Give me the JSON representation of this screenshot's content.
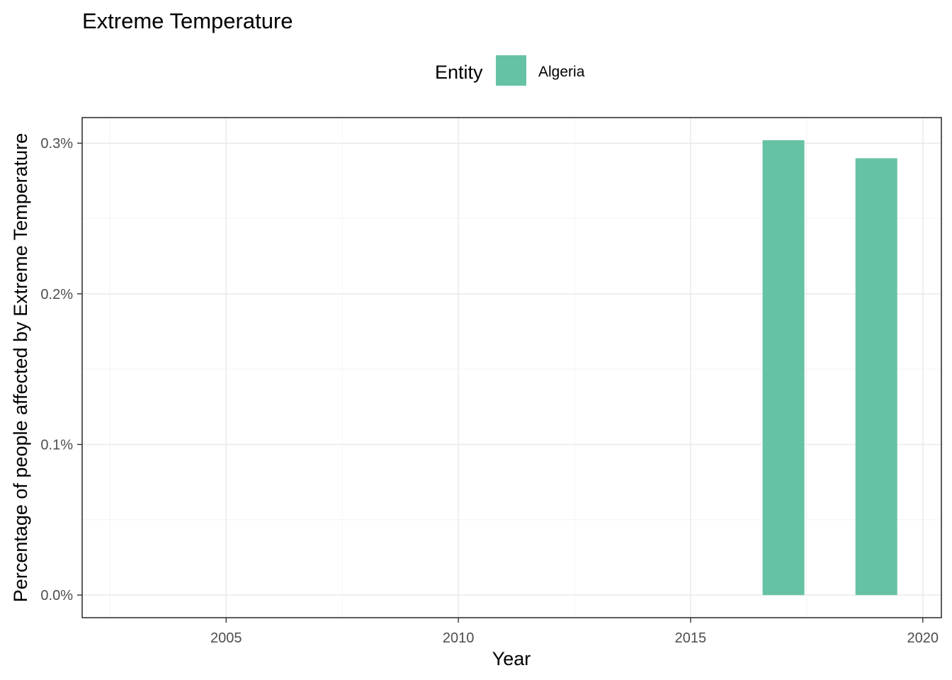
{
  "chart_data": {
    "type": "bar",
    "title": "Extreme Temperature",
    "xlabel": "Year",
    "ylabel": "Percentage of people affected by Extreme Temperature",
    "legend": {
      "title": "Entity",
      "position": "top"
    },
    "series": [
      {
        "name": "Algeria",
        "color": "#66c2a5",
        "x": [
          2017,
          2019
        ],
        "values": [
          0.302,
          0.29
        ]
      }
    ],
    "xlim": [
      2001.9,
      2020.4
    ],
    "ylim": [
      -0.015,
      0.317
    ],
    "x_ticks": [
      2005,
      2010,
      2015,
      2020
    ],
    "x_tick_labels": [
      "2005",
      "2010",
      "2015",
      "2020"
    ],
    "y_ticks": [
      0.0,
      0.1,
      0.2,
      0.3
    ],
    "y_tick_labels": [
      "0.0%",
      "0.1%",
      "0.2%",
      "0.3%"
    ],
    "bar_width_years": 0.9,
    "grid": true
  }
}
